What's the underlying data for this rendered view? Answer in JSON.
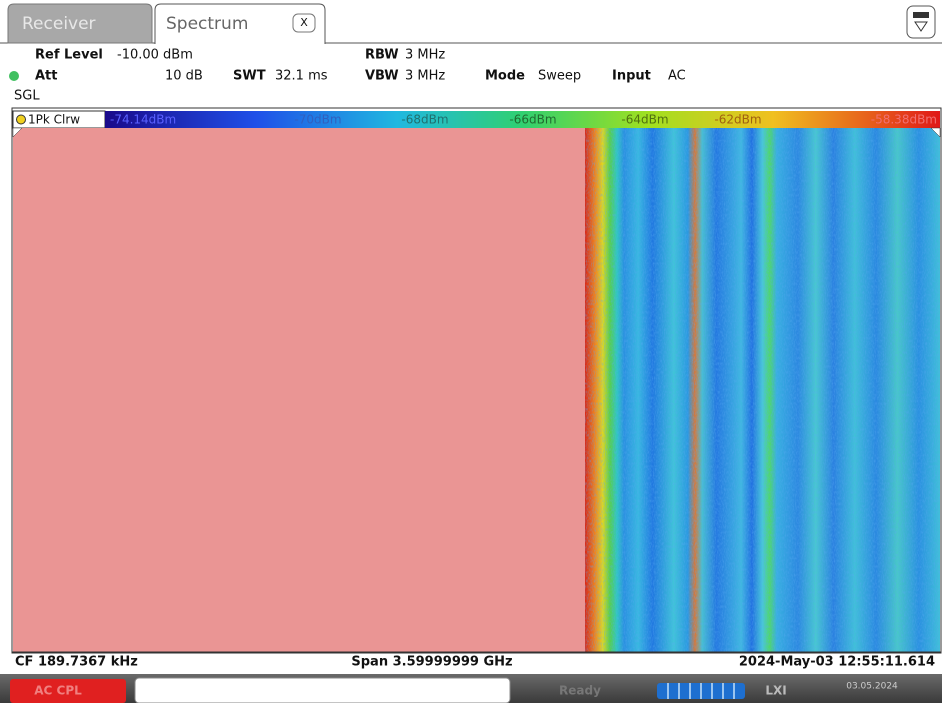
{
  "tabs": [
    "Receiver",
    "Spectrum"
  ],
  "close_button": "X",
  "header": {
    "ref_level": {
      "label": "Ref Level",
      "value": "-10.00 dBm"
    },
    "rbw": {
      "label": "RBW",
      "value": "3 MHz"
    },
    "att": {
      "label": "Att",
      "value": "10 dB"
    },
    "swt": {
      "label": "SWT",
      "value": "32.1 ms"
    },
    "vbw": {
      "label": "VBW",
      "value": "3 MHz"
    },
    "mode": {
      "label": "Mode",
      "value": "Sweep"
    },
    "input": {
      "label": "Input",
      "value": "AC"
    },
    "sweep_flag": "SGL"
  },
  "trace": "1Pk Clrw",
  "color_scale": [
    "-74.14dBm",
    "-70dBm",
    "-68dBm",
    "-66dBm",
    "-64dBm",
    "-62dBm",
    "-58.38dBm"
  ],
  "footer": {
    "center_frequency": "CF 189.7367 kHz",
    "span": "Span 3.59999999 GHz",
    "timestamp": "2024-May-03 12:55:11.614"
  },
  "status_bar": {
    "coupling": "AC CPL",
    "state": "Ready",
    "lxi": "LXI",
    "date": "03.05.2024"
  }
}
